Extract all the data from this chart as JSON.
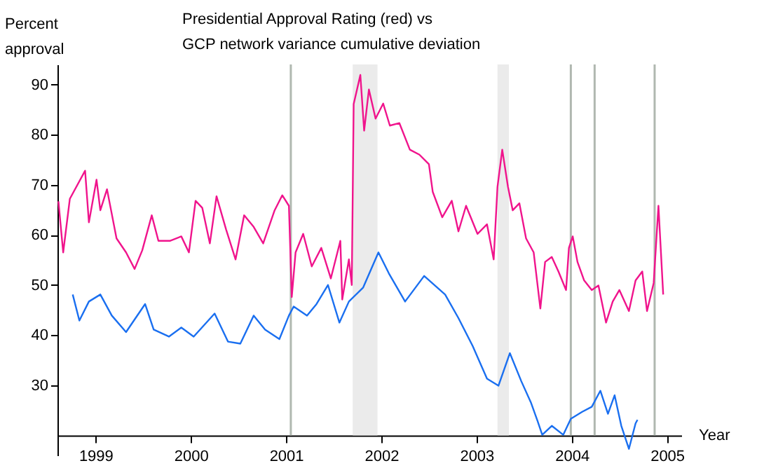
{
  "chart_data": {
    "type": "line",
    "title": "Presidential Approval   Rating  (red) vs\nGCP  network  variance   cumulative   deviation",
    "xlabel": "Year",
    "ylabel": "Percent\napproval",
    "xlim": [
      1998.6,
      2005.15
    ],
    "xticks": [
      1999,
      2000,
      2001,
      2002,
      2003,
      2004,
      2005
    ],
    "ylim": [
      16,
      94
    ],
    "yticks": [
      30,
      40,
      50,
      60,
      70,
      80,
      90
    ],
    "grid": false,
    "marker": "none",
    "line_style": "solid",
    "series": [
      {
        "color": "#f0148c",
        "x": [
          1998.61,
          1998.66,
          1998.73,
          1998.89,
          1998.93,
          1999.01,
          1999.05,
          1999.12,
          1999.22,
          1999.32,
          1999.41,
          1999.49,
          1999.59,
          1999.66,
          1999.78,
          1999.9,
          1999.98,
          2000.05,
          2000.12,
          2000.2,
          2000.27,
          2000.37,
          2000.47,
          2000.56,
          2000.66,
          2000.76,
          2000.88,
          2000.96,
          2001.03,
          2001.06,
          2001.1,
          2001.18,
          2001.27,
          2001.37,
          2001.47,
          2001.57,
          2001.59,
          2001.66,
          2001.69,
          2001.71,
          2001.78,
          2001.82,
          2001.87,
          2001.94,
          2002.02,
          2002.09,
          2002.19,
          2002.3,
          2002.4,
          2002.5,
          2002.54,
          2002.64,
          2002.74,
          2002.81,
          2002.89,
          2003.01,
          2003.11,
          2003.18,
          2003.22,
          2003.27,
          2003.33,
          2003.38,
          2003.45,
          2003.52,
          2003.6,
          2003.67,
          2003.72,
          2003.79,
          2003.86,
          2003.94,
          2003.97,
          2004.01,
          2004.06,
          2004.13,
          2004.21,
          2004.28,
          2004.36,
          2004.43,
          2004.5,
          2004.6,
          2004.67,
          2004.74,
          2004.79,
          2004.86,
          2004.91,
          2004.96
        ],
        "values": [
          66.7,
          56.5,
          67.2,
          72.8,
          62.5,
          71.0,
          64.9,
          69.1,
          59.3,
          56.5,
          53.2,
          56.9,
          63.9,
          58.8,
          58.8,
          59.7,
          56.5,
          66.8,
          65.4,
          58.3,
          67.7,
          61.1,
          55.1,
          63.9,
          61.6,
          58.3,
          64.9,
          67.9,
          65.8,
          47.6,
          56.5,
          60.2,
          53.7,
          57.4,
          51.3,
          58.8,
          47.1,
          55.1,
          50.0,
          86.1,
          91.9,
          80.8,
          89.0,
          83.2,
          86.2,
          81.8,
          82.3,
          77.0,
          76.0,
          74.1,
          68.6,
          63.5,
          66.8,
          60.7,
          65.8,
          60.2,
          62.1,
          55.1,
          69.6,
          77.0,
          69.6,
          64.9,
          66.3,
          59.3,
          56.5,
          45.3,
          54.6,
          55.6,
          52.7,
          49.0,
          57.4,
          59.7,
          54.6,
          50.9,
          49.0,
          49.9,
          42.5,
          46.7,
          49.0,
          44.8,
          50.9,
          52.7,
          44.8,
          50.4,
          65.8,
          48.1
        ]
      },
      {
        "color": "#1a6ff0",
        "x": [
          1998.76,
          1998.83,
          1998.93,
          1999.05,
          1999.17,
          1999.32,
          1999.52,
          1999.61,
          1999.77,
          1999.9,
          2000.03,
          2000.25,
          2000.39,
          2000.52,
          2000.66,
          2000.78,
          2000.93,
          2001.03,
          2001.08,
          2001.22,
          2001.32,
          2001.44,
          2001.56,
          2001.66,
          2001.81,
          2001.97,
          2002.08,
          2002.25,
          2002.45,
          2002.67,
          2002.81,
          2002.96,
          2003.11,
          2003.23,
          2003.35,
          2003.47,
          2003.57,
          2003.64,
          2003.69,
          2003.79,
          2003.91,
          2003.99,
          2004.11,
          2004.21,
          2004.3,
          2004.38,
          2004.45,
          2004.52,
          2004.6,
          2004.67,
          2004.69
        ],
        "values": [
          48.1,
          42.9,
          46.7,
          48.1,
          43.9,
          40.6,
          46.2,
          41.1,
          39.7,
          41.5,
          39.7,
          44.3,
          38.7,
          38.3,
          43.9,
          41.1,
          39.2,
          43.9,
          45.7,
          43.9,
          46.2,
          50.0,
          42.5,
          46.7,
          49.5,
          56.5,
          52.3,
          46.7,
          51.8,
          48.1,
          43.4,
          37.8,
          31.3,
          29.9,
          36.4,
          30.8,
          26.6,
          22.9,
          20.1,
          21.9,
          20.1,
          23.3,
          24.7,
          25.7,
          28.9,
          24.3,
          28.0,
          21.9,
          17.3,
          22.4,
          23.1
        ]
      }
    ],
    "bands": [
      {
        "axis": "x",
        "from": 2001.7,
        "to": 2001.96,
        "color": "#ebebeb"
      },
      {
        "axis": "x",
        "from": 2003.22,
        "to": 2003.34,
        "color": "#ebebeb"
      }
    ],
    "ref_lines": [
      {
        "axis": "x",
        "value": 2001.05,
        "color": "#b0b8b0"
      },
      {
        "axis": "x",
        "value": 2003.99,
        "color": "#b0b8b0"
      },
      {
        "axis": "x",
        "value": 2004.24,
        "color": "#b0b8b0"
      },
      {
        "axis": "x",
        "value": 2004.87,
        "color": "#b0b8b0"
      }
    ]
  }
}
